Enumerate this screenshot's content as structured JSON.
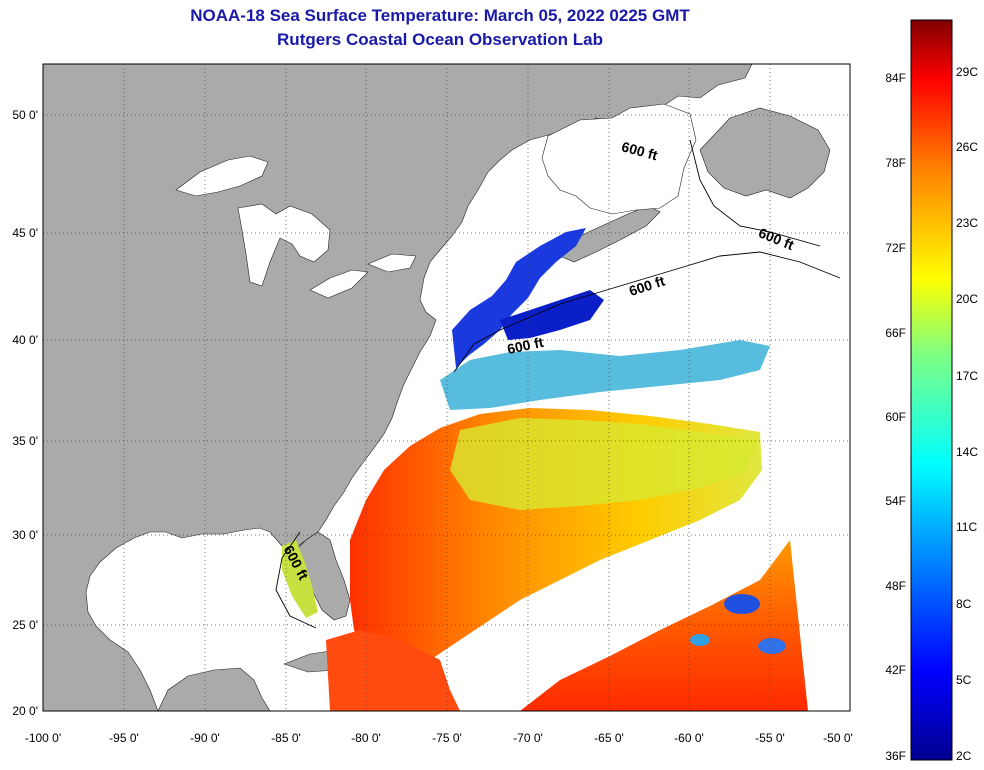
{
  "header": {
    "title": "NOAA-18 Sea Surface Temperature:  March 05, 2022 0225 GMT",
    "subtitle": "Rutgers Coastal Ocean Observation Lab"
  },
  "map": {
    "lon_ticks": [
      "-100 0'",
      "-95 0'",
      "-90 0'",
      "-85 0'",
      "-80 0'",
      "-75 0'",
      "-70 0'",
      "-65 0'",
      "-60 0'",
      "-55 0'",
      "-50 0'"
    ],
    "lat_ticks": [
      "50 0'",
      "45 0'",
      "40 0'",
      "35 0'",
      "30 0'",
      "25 0'",
      "20 0'"
    ],
    "depth_labels": [
      "600 ft",
      "600 ft",
      "600 ft",
      "600 ft",
      "600 ft"
    ],
    "colors": {
      "land": "#aaaaaa",
      "missing": "#ffffff",
      "gridline": "#555555"
    }
  },
  "colorbar": {
    "fahrenheit": [
      "84F",
      "78F",
      "72F",
      "66F",
      "60F",
      "54F",
      "48F",
      "42F",
      "36F"
    ],
    "celsius": [
      "29C",
      "26C",
      "23C",
      "20C",
      "17C",
      "14C",
      "11C",
      "8C",
      "5C",
      "2C"
    ]
  }
}
